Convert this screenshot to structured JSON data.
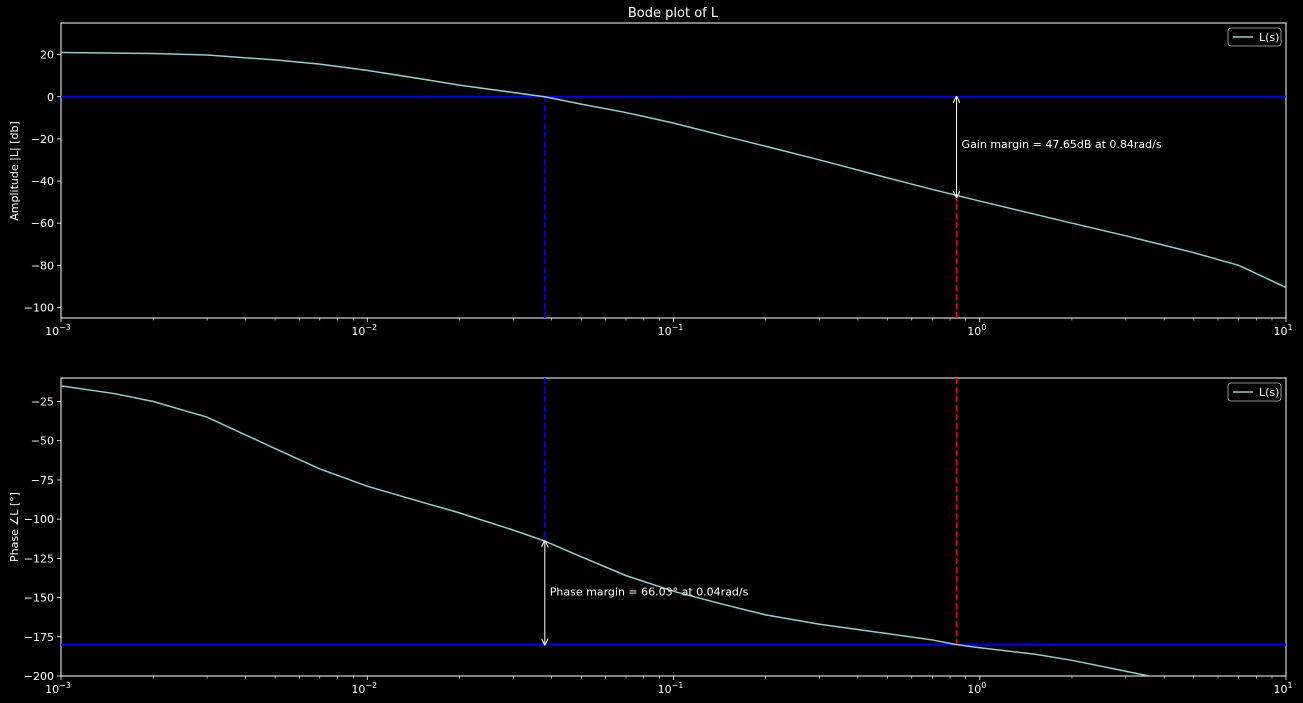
{
  "chart_data": [
    {
      "type": "line",
      "title": "Bode plot of L",
      "xlabel": "",
      "ylabel": "Amplitude |L| [db]",
      "xscale": "log",
      "xlim": [
        0.001,
        10
      ],
      "ylim": [
        -105,
        35
      ],
      "xticks": [
        0.001,
        0.01,
        0.1,
        1,
        10
      ],
      "xtick_labels": [
        "10",
        "10",
        "10",
        "10",
        "10"
      ],
      "xtick_exponents": [
        "−3",
        "−2",
        "−1",
        "0",
        "1"
      ],
      "yticks": [
        20,
        0,
        -20,
        -40,
        -60,
        -80,
        -100
      ],
      "ytick_labels": [
        "20",
        "0",
        "−20",
        "−40",
        "−60",
        "−80",
        "−100"
      ],
      "grid": false,
      "legend": {
        "placement": "top-right",
        "entries": [
          "L(s)"
        ]
      },
      "series": [
        {
          "name": "L(s)",
          "color": "#8dd3c7",
          "x": [
            0.001,
            0.002,
            0.003,
            0.005,
            0.007,
            0.01,
            0.015,
            0.02,
            0.03,
            0.038,
            0.05,
            0.07,
            0.1,
            0.15,
            0.2,
            0.3,
            0.5,
            0.7,
            1,
            2,
            3,
            5,
            7,
            10
          ],
          "y": [
            21,
            20.5,
            19.8,
            17.5,
            15.5,
            12.5,
            8.5,
            5.5,
            2,
            0,
            -3.5,
            -7.5,
            -12.5,
            -19,
            -23.5,
            -30,
            -38.5,
            -44,
            -49.5,
            -60,
            -66,
            -74,
            -80,
            -90.5
          ]
        }
      ],
      "reference_lines": [
        {
          "orientation": "horizontal",
          "y": 0,
          "color": "#0000ff",
          "style": "solid"
        },
        {
          "orientation": "vertical",
          "x": 0.038,
          "y_from": -105,
          "y_to": 0,
          "color": "#0000ff",
          "style": "dashed"
        },
        {
          "orientation": "vertical",
          "x": 0.84,
          "y_from": -105,
          "y_to": -47.65,
          "color": "#ff0000",
          "style": "dashed"
        }
      ],
      "annotation": {
        "text": "Gain margin = 47.65dB at 0.84rad/s",
        "arrow_x": 0.84,
        "arrow_y_from": 0,
        "arrow_y_to": -47.65,
        "text_y": -22.5
      }
    },
    {
      "type": "line",
      "title": "",
      "xlabel": "",
      "ylabel": "Phase ∠L [°]",
      "xscale": "log",
      "xlim": [
        0.001,
        10
      ],
      "ylim": [
        -200,
        -10
      ],
      "xticks": [
        0.001,
        0.01,
        0.1,
        1,
        10
      ],
      "xtick_labels": [
        "10",
        "10",
        "10",
        "10",
        "10"
      ],
      "xtick_exponents": [
        "−3",
        "−2",
        "−1",
        "0",
        "1"
      ],
      "yticks": [
        -25,
        -50,
        -75,
        -100,
        -125,
        -150,
        -175,
        -200
      ],
      "ytick_labels": [
        "−25",
        "−50",
        "−75",
        "−100",
        "−125",
        "−150",
        "−175",
        "−200"
      ],
      "grid": false,
      "legend": {
        "placement": "top-right",
        "entries": [
          "L(s)"
        ]
      },
      "series": [
        {
          "name": "L(s)",
          "color": "#8dd3c7",
          "x": [
            0.001,
            0.0015,
            0.002,
            0.003,
            0.005,
            0.007,
            0.01,
            0.015,
            0.02,
            0.03,
            0.038,
            0.05,
            0.07,
            0.1,
            0.15,
            0.2,
            0.3,
            0.5,
            0.7,
            0.84,
            1,
            1.5,
            2,
            3,
            4
          ],
          "y": [
            -15,
            -20,
            -25,
            -35,
            -55,
            -68,
            -79,
            -89,
            -96,
            -107,
            -113.97,
            -124,
            -136,
            -146,
            -155,
            -161,
            -167,
            -173,
            -177,
            -180,
            -182,
            -186,
            -190,
            -197,
            -202
          ]
        }
      ],
      "reference_lines": [
        {
          "orientation": "horizontal",
          "y": -180,
          "color": "#0000ff",
          "style": "solid"
        },
        {
          "orientation": "vertical",
          "x": 0.038,
          "y_from": -10,
          "y_to": -113.97,
          "color": "#0000ff",
          "style": "dashed"
        },
        {
          "orientation": "vertical",
          "x": 0.84,
          "y_from": -10,
          "y_to": -180,
          "color": "#ff0000",
          "style": "dashed"
        }
      ],
      "annotation": {
        "text": "Phase margin = 66.03° at 0.04rad/s",
        "arrow_x": 0.038,
        "arrow_y_from": -180,
        "arrow_y_to": -113.97,
        "text_y": -146
      }
    }
  ]
}
